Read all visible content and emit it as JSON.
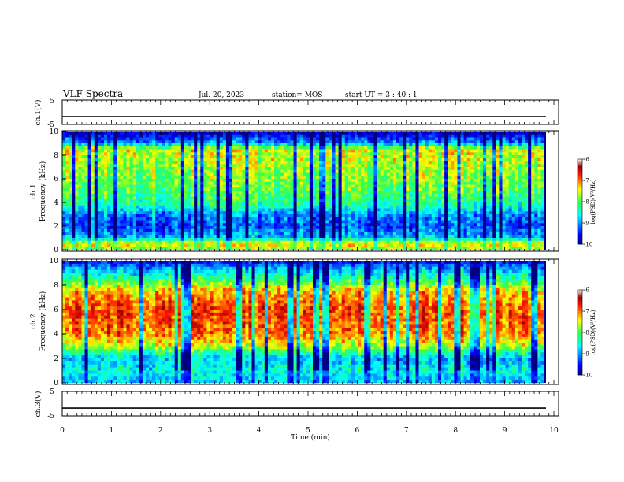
{
  "header": {
    "title": "VLF Spectra",
    "date": "Jul. 20, 2023",
    "station": "station= MOS",
    "start_ut": "start UT =  3 : 40 : 1"
  },
  "chart_data": [
    {
      "type": "line",
      "ylabel": "ch.1(V)",
      "ylim": [
        -5,
        5
      ],
      "yticks": [
        "5",
        "-5"
      ],
      "xlim": [
        0,
        10
      ],
      "series": [
        {
          "values": [
            -1.8
          ]
        }
      ]
    },
    {
      "type": "heatmap",
      "ylabel": "ch.1",
      "ylabel2": "Frequency (kHz)",
      "ylim": [
        0,
        10
      ],
      "yticks": [
        "0",
        "2",
        "4",
        "6",
        "8",
        "10"
      ],
      "xlim": [
        0,
        9.8
      ],
      "colorbar": {
        "label": "log(PSD)(V²/Hz)",
        "ticks": [
          "-6",
          "-7",
          "-8",
          "-9",
          "-10"
        ],
        "range": [
          -10,
          -6
        ]
      },
      "intensity_profile": [
        {
          "f": 0,
          "v": -7.8
        },
        {
          "f": 0.5,
          "v": -7.3
        },
        {
          "f": 1.0,
          "v": -8.8
        },
        {
          "f": 2.0,
          "v": -9.3
        },
        {
          "f": 3.0,
          "v": -9.0
        },
        {
          "f": 4.0,
          "v": -8.2
        },
        {
          "f": 6.0,
          "v": -7.8
        },
        {
          "f": 8.5,
          "v": -7.5
        },
        {
          "f": 9.0,
          "v": -9.0
        },
        {
          "f": 10,
          "v": -9.8
        }
      ]
    },
    {
      "type": "heatmap",
      "ylabel": "ch.2",
      "ylabel2": "Frequency (kHz)",
      "ylim": [
        0,
        10
      ],
      "yticks": [
        "0",
        "2",
        "4",
        "6",
        "8",
        "10"
      ],
      "xlim": [
        0,
        9.8
      ],
      "colorbar": {
        "label": "log(PSD)(V²/Hz)",
        "ticks": [
          "-6",
          "-7",
          "-8",
          "-9",
          "-10"
        ],
        "range": [
          -10,
          -6
        ]
      },
      "intensity_profile": [
        {
          "f": 0,
          "v": -8.8
        },
        {
          "f": 1.0,
          "v": -8.5
        },
        {
          "f": 2.0,
          "v": -8.8
        },
        {
          "f": 3.0,
          "v": -7.6
        },
        {
          "f": 4.0,
          "v": -7.0
        },
        {
          "f": 6.0,
          "v": -6.8
        },
        {
          "f": 7.5,
          "v": -7.2
        },
        {
          "f": 8.5,
          "v": -8.2
        },
        {
          "f": 9.5,
          "v": -9.0
        },
        {
          "f": 10,
          "v": -9.6
        }
      ]
    },
    {
      "type": "line",
      "ylabel": "ch.3(V)",
      "ylim": [
        -5,
        5
      ],
      "yticks": [
        "5",
        "-5"
      ],
      "xlim": [
        0,
        10
      ],
      "series": [
        {
          "values": [
            -1.8
          ]
        }
      ]
    }
  ],
  "xaxis": {
    "label": "Time (min)",
    "range": [
      0,
      10
    ],
    "ticks": [
      "0",
      "1",
      "2",
      "3",
      "4",
      "5",
      "6",
      "7",
      "8",
      "9",
      "10"
    ]
  }
}
